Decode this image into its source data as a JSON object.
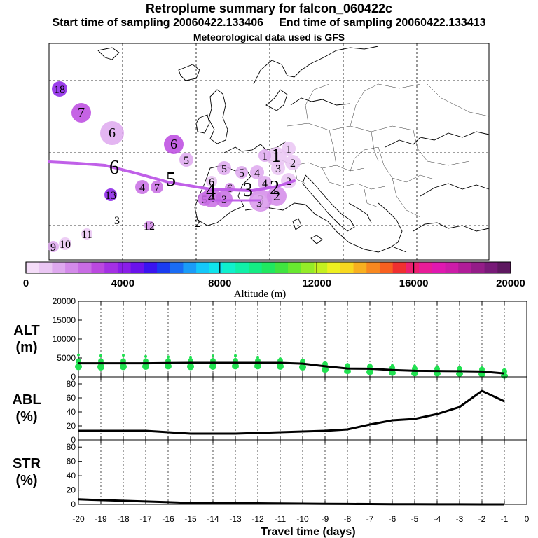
{
  "header": {
    "title": "Retroplume summary for falcon_060422c",
    "start_label": "Start time of sampling 20060422.133406",
    "end_label": "End time of sampling 20060422.133413",
    "met_label": "Meteorological data used is GFS"
  },
  "colorbar": {
    "label": "Altitude (m)",
    "ticks": [
      "0",
      "4000",
      "8000",
      "12000",
      "16000",
      "20000"
    ],
    "colors": [
      "#f4dcf8",
      "#eac6f3",
      "#dea8ee",
      "#d38ae9",
      "#c86ce4",
      "#bb48e0",
      "#a430e4",
      "#8a1ee8",
      "#6a12ec",
      "#3a14f0",
      "#1a3cf0",
      "#1a6cf4",
      "#1a9cf8",
      "#14c8fa",
      "#10e4ec",
      "#10f0cc",
      "#10f0a8",
      "#14ec84",
      "#20e860",
      "#40e440",
      "#68e830",
      "#94ec28",
      "#c4f020",
      "#eef020",
      "#f8d820",
      "#f8b020",
      "#f88820",
      "#f86020",
      "#f03030",
      "#ec2070",
      "#e81c98",
      "#e018b0",
      "#cc1ca8",
      "#b01c98",
      "#941c88",
      "#781a78",
      "#5e1860"
    ]
  },
  "map_points": [
    {
      "label": "18",
      "alt": 4200,
      "size": 11
    },
    {
      "label": "7",
      "alt": 3000,
      "size": 14
    },
    {
      "label": "6",
      "alt": 1500,
      "size": 17
    },
    {
      "label": "6",
      "alt": 3200,
      "size": 14
    },
    {
      "label": "5",
      "alt": 1400,
      "size": 10
    },
    {
      "label": "6",
      "alt": 900,
      "size": 8
    },
    {
      "label": "5",
      "alt": 1600,
      "size": 10
    },
    {
      "label": "5",
      "alt": 1600,
      "size": 9
    },
    {
      "label": "4",
      "alt": 1500,
      "size": 10
    },
    {
      "label": "4",
      "alt": 2600,
      "size": 10
    },
    {
      "label": "7",
      "alt": 2600,
      "size": 9
    },
    {
      "label": "13",
      "alt": 4200,
      "size": 9
    },
    {
      "label": "6",
      "alt": 2000,
      "size": 7
    },
    {
      "label": "5",
      "alt": 2400,
      "size": 10
    },
    {
      "label": "4",
      "alt": 2200,
      "size": 14
    },
    {
      "label": "3",
      "alt": 2400,
      "size": 12
    },
    {
      "label": "3",
      "alt": 1800,
      "size": 16
    },
    {
      "label": "2",
      "alt": 1700,
      "size": 14
    },
    {
      "label": "3",
      "alt": 1400,
      "size": 12
    },
    {
      "label": "2",
      "alt": 900,
      "size": 11
    },
    {
      "label": "2",
      "alt": 900,
      "size": 11
    },
    {
      "label": "1",
      "alt": 700,
      "size": 14
    },
    {
      "label": "1",
      "alt": 700,
      "size": 10
    },
    {
      "label": "3",
      "alt": 900,
      "size": 10
    },
    {
      "label": "4",
      "alt": 1300,
      "size": 10
    },
    {
      "label": "11",
      "alt": 800,
      "size": 8
    },
    {
      "label": "12",
      "alt": 1700,
      "size": 7
    },
    {
      "label": "10",
      "alt": 700,
      "size": 9
    },
    {
      "label": "9",
      "alt": 1400,
      "size": 8
    },
    {
      "label": "2",
      "alt": 0,
      "size": 0
    },
    {
      "label": "3",
      "alt": 0,
      "size": 0
    },
    {
      "label": "1",
      "alt": 1400,
      "size": 9
    }
  ],
  "map_centroid_labels": [
    "6",
    "5",
    "4",
    "3",
    "2",
    "1"
  ],
  "chart_data": [
    {
      "type": "line",
      "panel_label": "ALT\n(m)",
      "ylabel_line1": "ALT",
      "ylabel_line2": "(m)",
      "x": [
        -20,
        -19,
        -18,
        -17,
        -16,
        -15,
        -14,
        -13,
        -12,
        -11,
        -10,
        -9,
        -8,
        -7,
        -6,
        -5,
        -4,
        -3,
        -2,
        -1
      ],
      "values": [
        3600,
        3600,
        3600,
        3600,
        3650,
        3700,
        3700,
        3700,
        3700,
        3700,
        3500,
        2800,
        2200,
        2150,
        1800,
        1600,
        1550,
        1500,
        1400,
        900
      ],
      "scatter_min": [
        2500,
        2400,
        2500,
        2600,
        2700,
        2500,
        2600,
        2700,
        2700,
        2600,
        2400,
        1800,
        1500,
        1200,
        1000,
        900,
        900,
        800,
        700,
        400
      ],
      "scatter_max": [
        5800,
        5600,
        5700,
        5400,
        5300,
        5200,
        5500,
        5600,
        5200,
        4800,
        4500,
        3900,
        3300,
        3200,
        3000,
        2900,
        2700,
        2600,
        2400,
        1900
      ],
      "ylim": [
        0,
        20000
      ],
      "yticks": [
        "0",
        "5000",
        "10000",
        "15000",
        "20000"
      ]
    },
    {
      "type": "line",
      "ylabel_line1": "ABL",
      "ylabel_line2": "(%)",
      "x": [
        -20,
        -19,
        -18,
        -17,
        -16,
        -15,
        -14,
        -13,
        -12,
        -11,
        -10,
        -9,
        -8,
        -7,
        -6,
        -5,
        -4,
        -3,
        -2,
        -1
      ],
      "values": [
        13,
        13,
        13,
        13,
        11,
        9,
        9,
        9,
        10,
        11,
        12,
        13,
        15,
        22,
        28,
        30,
        37,
        47,
        70,
        55
      ],
      "ylim": [
        0,
        90
      ],
      "yticks": [
        "0",
        "20",
        "40",
        "60",
        "80"
      ]
    },
    {
      "type": "line",
      "ylabel_line1": "STR",
      "ylabel_line2": "(%)",
      "x": [
        -20,
        -19,
        -18,
        -17,
        -16,
        -15,
        -14,
        -13,
        -12,
        -11,
        -10,
        -9,
        -8,
        -7,
        -6,
        -5,
        -4,
        -3,
        -2,
        -1
      ],
      "values": [
        7,
        6,
        5,
        4,
        3,
        2,
        2,
        2,
        1.5,
        1.2,
        1,
        0.8,
        0.6,
        0.5,
        0.3,
        0.2,
        0.1,
        0.1,
        0,
        0
      ],
      "ylim": [
        0,
        90
      ],
      "yticks": [
        "0",
        "20",
        "40",
        "60",
        "80"
      ],
      "xlabel": "Travel time (days)",
      "xticks": [
        "-20",
        "-19",
        "-18",
        "-17",
        "-16",
        "-15",
        "-14",
        "-13",
        "-12",
        "-11",
        "-10",
        "-9",
        "-8",
        "-7",
        "-6",
        "-5",
        "-4",
        "-3",
        "-2",
        "-1",
        "0"
      ]
    }
  ]
}
